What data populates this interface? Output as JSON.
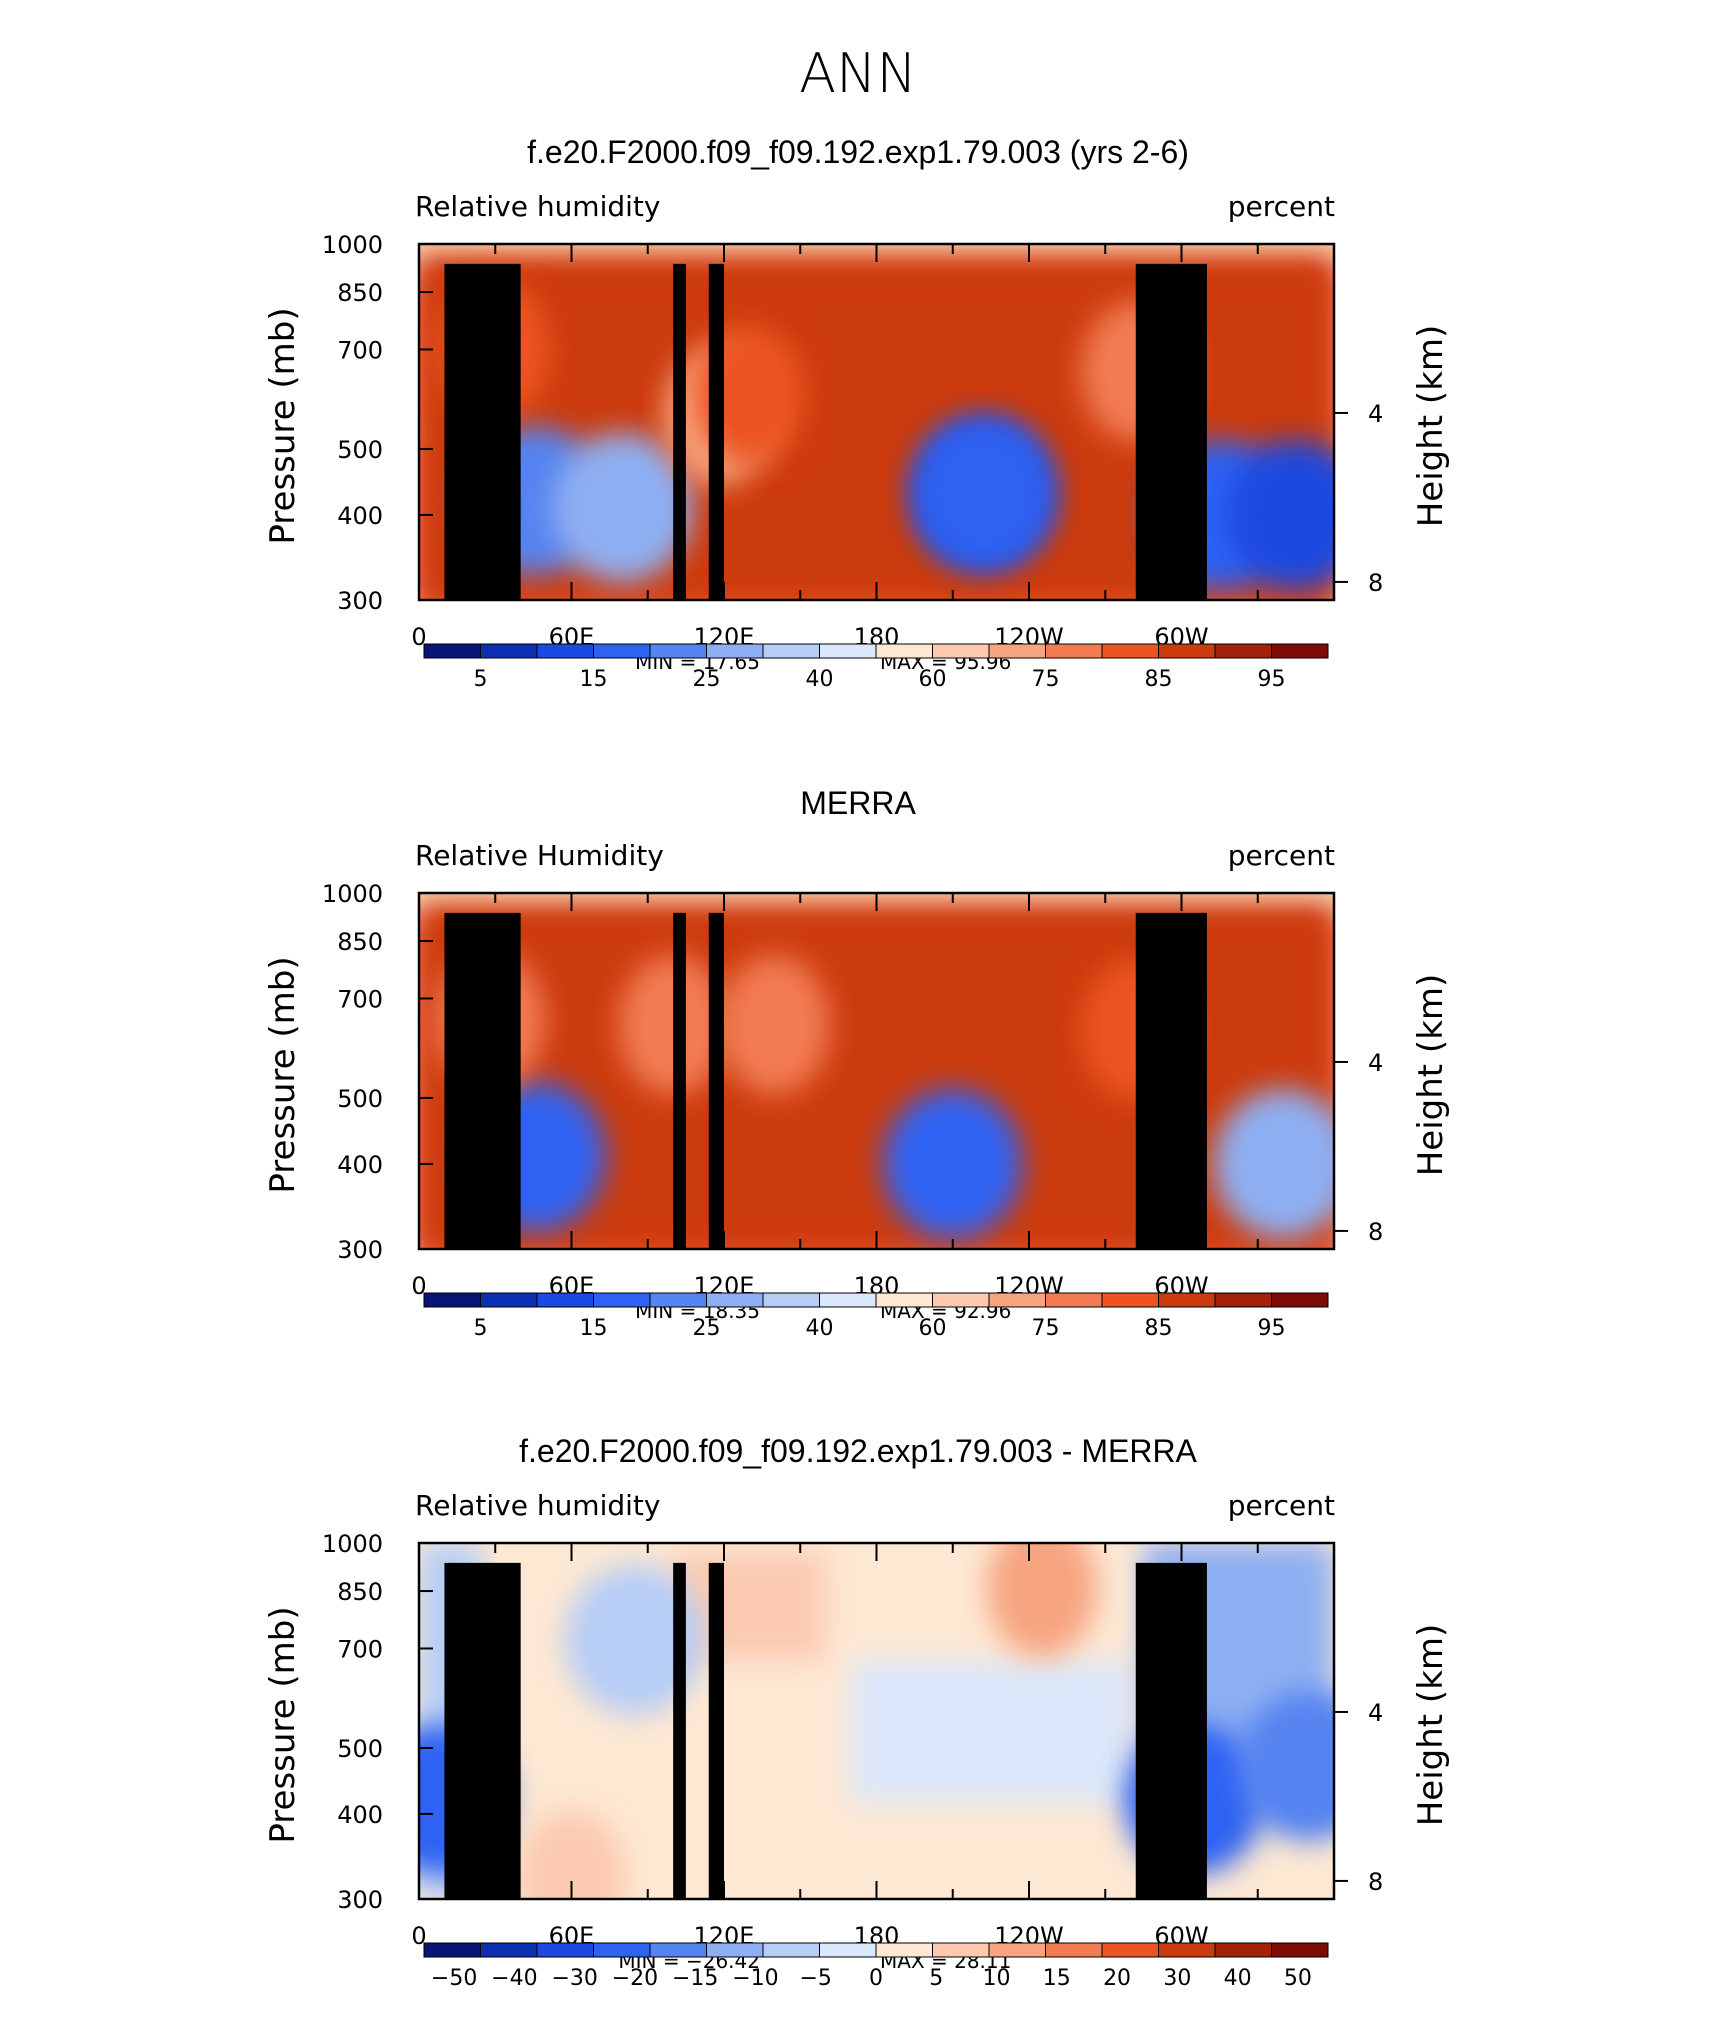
{
  "figure_title": "ANN",
  "chart_data": [
    {
      "type": "heatmap",
      "title": "f.e20.F2000.f09_f09.192.exp1.79.003 (yrs 2-6)",
      "variable_label": "Relative humidity",
      "units_label": "percent",
      "ylabel": "Pressure (mb)",
      "y2label": "Height (km)",
      "xlabel": "",
      "y_ticks": [
        "300",
        "400",
        "500",
        "700",
        "850",
        "1000"
      ],
      "y_tick_values": [
        300,
        400,
        500,
        700,
        850,
        1000
      ],
      "y2_ticks": [
        "8",
        "4"
      ],
      "y2_tick_values": [
        8,
        4
      ],
      "x_ticks": [
        "0",
        "60E",
        "120E",
        "180",
        "120W",
        "60W"
      ],
      "x_tick_values": [
        0,
        60,
        120,
        180,
        240,
        300
      ],
      "xlim": [
        0,
        360
      ],
      "ylim": [
        1000,
        300
      ],
      "min_label": "MIN = 17.65",
      "max_label": "MAX = 95.96",
      "min": 17.65,
      "max": 95.96,
      "colorbar_labels": [
        "5",
        "15",
        "25",
        "40",
        "60",
        "75",
        "85",
        "95"
      ],
      "colorbar_levels": [
        5,
        10,
        15,
        20,
        25,
        30,
        40,
        50,
        60,
        70,
        75,
        80,
        85,
        90,
        95
      ],
      "features": [
        {
          "type": "dry",
          "lon": 45,
          "p": 420,
          "level": 4
        },
        {
          "type": "dry",
          "lon": 80,
          "p": 410,
          "level": 5
        },
        {
          "type": "dry",
          "lon": 222,
          "p": 430,
          "level": 2
        },
        {
          "type": "dry",
          "lon": 222,
          "p": 430,
          "level": 3
        },
        {
          "type": "dry",
          "lon": 315,
          "p": 400,
          "level": 3
        },
        {
          "type": "dry",
          "lon": 345,
          "p": 400,
          "level": 2
        },
        {
          "type": "moist",
          "lon": 118,
          "p": 560,
          "level": 10
        },
        {
          "type": "moist",
          "lon": 130,
          "p": 600,
          "level": 12
        },
        {
          "type": "moist",
          "lon": 30,
          "p": 700,
          "level": 12
        },
        {
          "type": "moist",
          "lon": 282,
          "p": 650,
          "level": 11
        }
      ]
    },
    {
      "type": "heatmap",
      "title": "MERRA",
      "variable_label": "Relative Humidity",
      "units_label": "percent",
      "ylabel": "Pressure (mb)",
      "y2label": "Height (km)",
      "xlabel": "",
      "y_ticks": [
        "300",
        "400",
        "500",
        "700",
        "850",
        "1000"
      ],
      "y_tick_values": [
        300,
        400,
        500,
        700,
        850,
        1000
      ],
      "y2_ticks": [
        "8",
        "4"
      ],
      "y2_tick_values": [
        8,
        4
      ],
      "x_ticks": [
        "0",
        "60E",
        "120E",
        "180",
        "120W",
        "60W"
      ],
      "x_tick_values": [
        0,
        60,
        120,
        180,
        240,
        300
      ],
      "xlim": [
        0,
        360
      ],
      "ylim": [
        1000,
        300
      ],
      "min_label": "MIN = 18.35",
      "max_label": "MAX = 92.96",
      "min": 18.35,
      "max": 92.96,
      "colorbar_labels": [
        "5",
        "15",
        "25",
        "40",
        "60",
        "75",
        "85",
        "95"
      ],
      "colorbar_levels": [
        5,
        10,
        15,
        20,
        25,
        30,
        40,
        50,
        60,
        70,
        75,
        80,
        85,
        90,
        95
      ],
      "features": [
        {
          "type": "dry",
          "lon": 46,
          "p": 410,
          "level": 3
        },
        {
          "type": "dry",
          "lon": 210,
          "p": 400,
          "level": 3
        },
        {
          "type": "dry",
          "lon": 340,
          "p": 400,
          "level": 5
        },
        {
          "type": "moist",
          "lon": 100,
          "p": 640,
          "level": 11
        },
        {
          "type": "moist",
          "lon": 140,
          "p": 640,
          "level": 11
        },
        {
          "type": "moist",
          "lon": 28,
          "p": 650,
          "level": 11
        },
        {
          "type": "moist",
          "lon": 282,
          "p": 630,
          "level": 12
        }
      ]
    },
    {
      "type": "heatmap",
      "title": "f.e20.F2000.f09_f09.192.exp1.79.003 - MERRA",
      "variable_label": "Relative humidity",
      "units_label": "percent",
      "ylabel": "Pressure (mb)",
      "y2label": "Height (km)",
      "xlabel": "",
      "y_ticks": [
        "300",
        "400",
        "500",
        "700",
        "850",
        "1000"
      ],
      "y_tick_values": [
        300,
        400,
        500,
        700,
        850,
        1000
      ],
      "y2_ticks": [
        "8",
        "4"
      ],
      "y2_tick_values": [
        8,
        4
      ],
      "x_ticks": [
        "0",
        "60E",
        "120E",
        "180",
        "120W",
        "60W"
      ],
      "x_tick_values": [
        0,
        60,
        120,
        180,
        240,
        300
      ],
      "xlim": [
        0,
        360
      ],
      "ylim": [
        1000,
        300
      ],
      "min_label": "MIN = −26.42",
      "max_label": "MAX = 28.11",
      "min": -26.42,
      "max": 28.11,
      "colorbar_labels": [
        "−50",
        "−40",
        "−30",
        "−20",
        "−15",
        "−10",
        "−5",
        "0",
        "5",
        "10",
        "15",
        "20",
        "30",
        "40",
        "50"
      ],
      "colorbar_levels": [
        -50,
        -40,
        -30,
        -20,
        -15,
        -10,
        -5,
        0,
        5,
        10,
        15,
        20,
        30,
        40,
        50
      ],
      "features": [
        {
          "type": "dry",
          "lon": 8,
          "p": 420,
          "level": 3
        },
        {
          "type": "dry",
          "lon": 305,
          "p": 420,
          "level": 3
        },
        {
          "type": "dry",
          "lon": 350,
          "p": 470,
          "level": 4
        },
        {
          "type": "dry",
          "lon": 85,
          "p": 720,
          "level": 6
        },
        {
          "type": "moist",
          "lon": 245,
          "p": 860,
          "level": 10
        },
        {
          "type": "moist",
          "lon": 60,
          "p": 320,
          "level": 9
        }
      ]
    }
  ],
  "colors": {
    "palette": [
      "#0a1478",
      "#0c2fb4",
      "#1c49e0",
      "#2e62f2",
      "#5583f0",
      "#8eaff2",
      "#b6cdf6",
      "#dbe7fb",
      "#fde8d3",
      "#fbcab0",
      "#f7a481",
      "#f37b52",
      "#ec5424",
      "#cc3b10",
      "#a3200a",
      "#7d0b06"
    ]
  }
}
